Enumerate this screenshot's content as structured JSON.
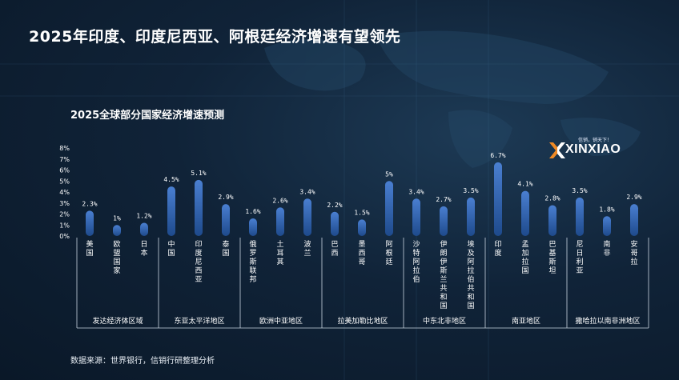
{
  "page_title": "2025年印度、印度尼西亚、阿根廷经济增速有望领先",
  "source_note": "数据来源：世界银行，信销行研整理分析",
  "logo": {
    "text": "XINXIAO",
    "tagline": "信销，销天下！"
  },
  "colors": {
    "bar_top": "#4a7fd1",
    "bar_bottom": "#1e4a8c",
    "logo_accent": "#f08a24"
  },
  "chart_data": {
    "type": "bar",
    "title": "2025全球部分国家经济增速预测",
    "y_ticks": [
      "8%",
      "7%",
      "6%",
      "5%",
      "4%",
      "3%",
      "2%",
      "1%",
      "0%"
    ],
    "ylim": [
      0,
      8
    ],
    "categories": [
      "美国",
      "欧盟国家",
      "日本",
      "中国",
      "印度尼西亚",
      "泰国",
      "俄罗斯联邦",
      "土耳其",
      "波兰",
      "巴西",
      "墨西哥",
      "阿根廷",
      "沙特阿拉伯",
      "伊朗伊斯兰共和国",
      "埃及阿拉伯共和国",
      "印度",
      "孟加拉国",
      "巴基斯坦",
      "尼日利亚",
      "南非",
      "安哥拉"
    ],
    "values": [
      2.3,
      1,
      1.2,
      4.5,
      5.1,
      2.9,
      1.6,
      2.6,
      3.4,
      2.2,
      1.5,
      5,
      3.4,
      2.7,
      3.5,
      6.7,
      4.1,
      2.8,
      3.5,
      1.8,
      2.9
    ],
    "value_labels": [
      "2.3%",
      "1%",
      "1.2%",
      "4.5%",
      "5.1%",
      "2.9%",
      "1.6%",
      "2.6%",
      "3.4%",
      "2.2%",
      "1.5%",
      "5%",
      "3.4%",
      "2.7%",
      "3.5%",
      "6.7%",
      "4.1%",
      "2.8%",
      "3.5%",
      "1.8%",
      "2.9%"
    ],
    "groups": [
      {
        "name": "发达经济体区域",
        "size": 3
      },
      {
        "name": "东亚太平洋地区",
        "size": 3
      },
      {
        "name": "欧洲中亚地区",
        "size": 3
      },
      {
        "name": "拉美加勒比地区",
        "size": 3
      },
      {
        "name": "中东北非地区",
        "size": 3
      },
      {
        "name": "南亚地区",
        "size": 3
      },
      {
        "name": "撒哈拉以南非洲地区",
        "size": 3
      }
    ]
  }
}
